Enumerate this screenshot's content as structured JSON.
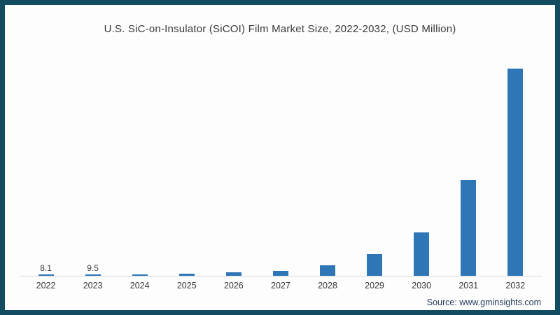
{
  "frame": {
    "border_color": "#134b60",
    "background": "#fdfdfd"
  },
  "chart_data": {
    "type": "bar",
    "title": "U.S. SiC-on-Insulator (SiCOI) Film Market Size, 2022-2032, (USD Million)",
    "categories": [
      "2022",
      "2023",
      "2024",
      "2025",
      "2026",
      "2027",
      "2028",
      "2029",
      "2030",
      "2031",
      "2032"
    ],
    "values": [
      8.1,
      9.5,
      12.5,
      16,
      26,
      37,
      75,
      155,
      310,
      685,
      1480
    ],
    "data_labels": [
      "8.1",
      "9.5",
      "",
      "",
      "",
      "",
      "",
      "",
      "",
      "",
      ""
    ],
    "xlabel": "",
    "ylabel": "",
    "ylim": [
      0,
      1500
    ],
    "grid": "off",
    "legend": "none",
    "bar_color": "#2e76b5",
    "axis_line_color": "#d9d9d9"
  },
  "footer": {
    "source_label": "Source: www.gminsights.com"
  }
}
